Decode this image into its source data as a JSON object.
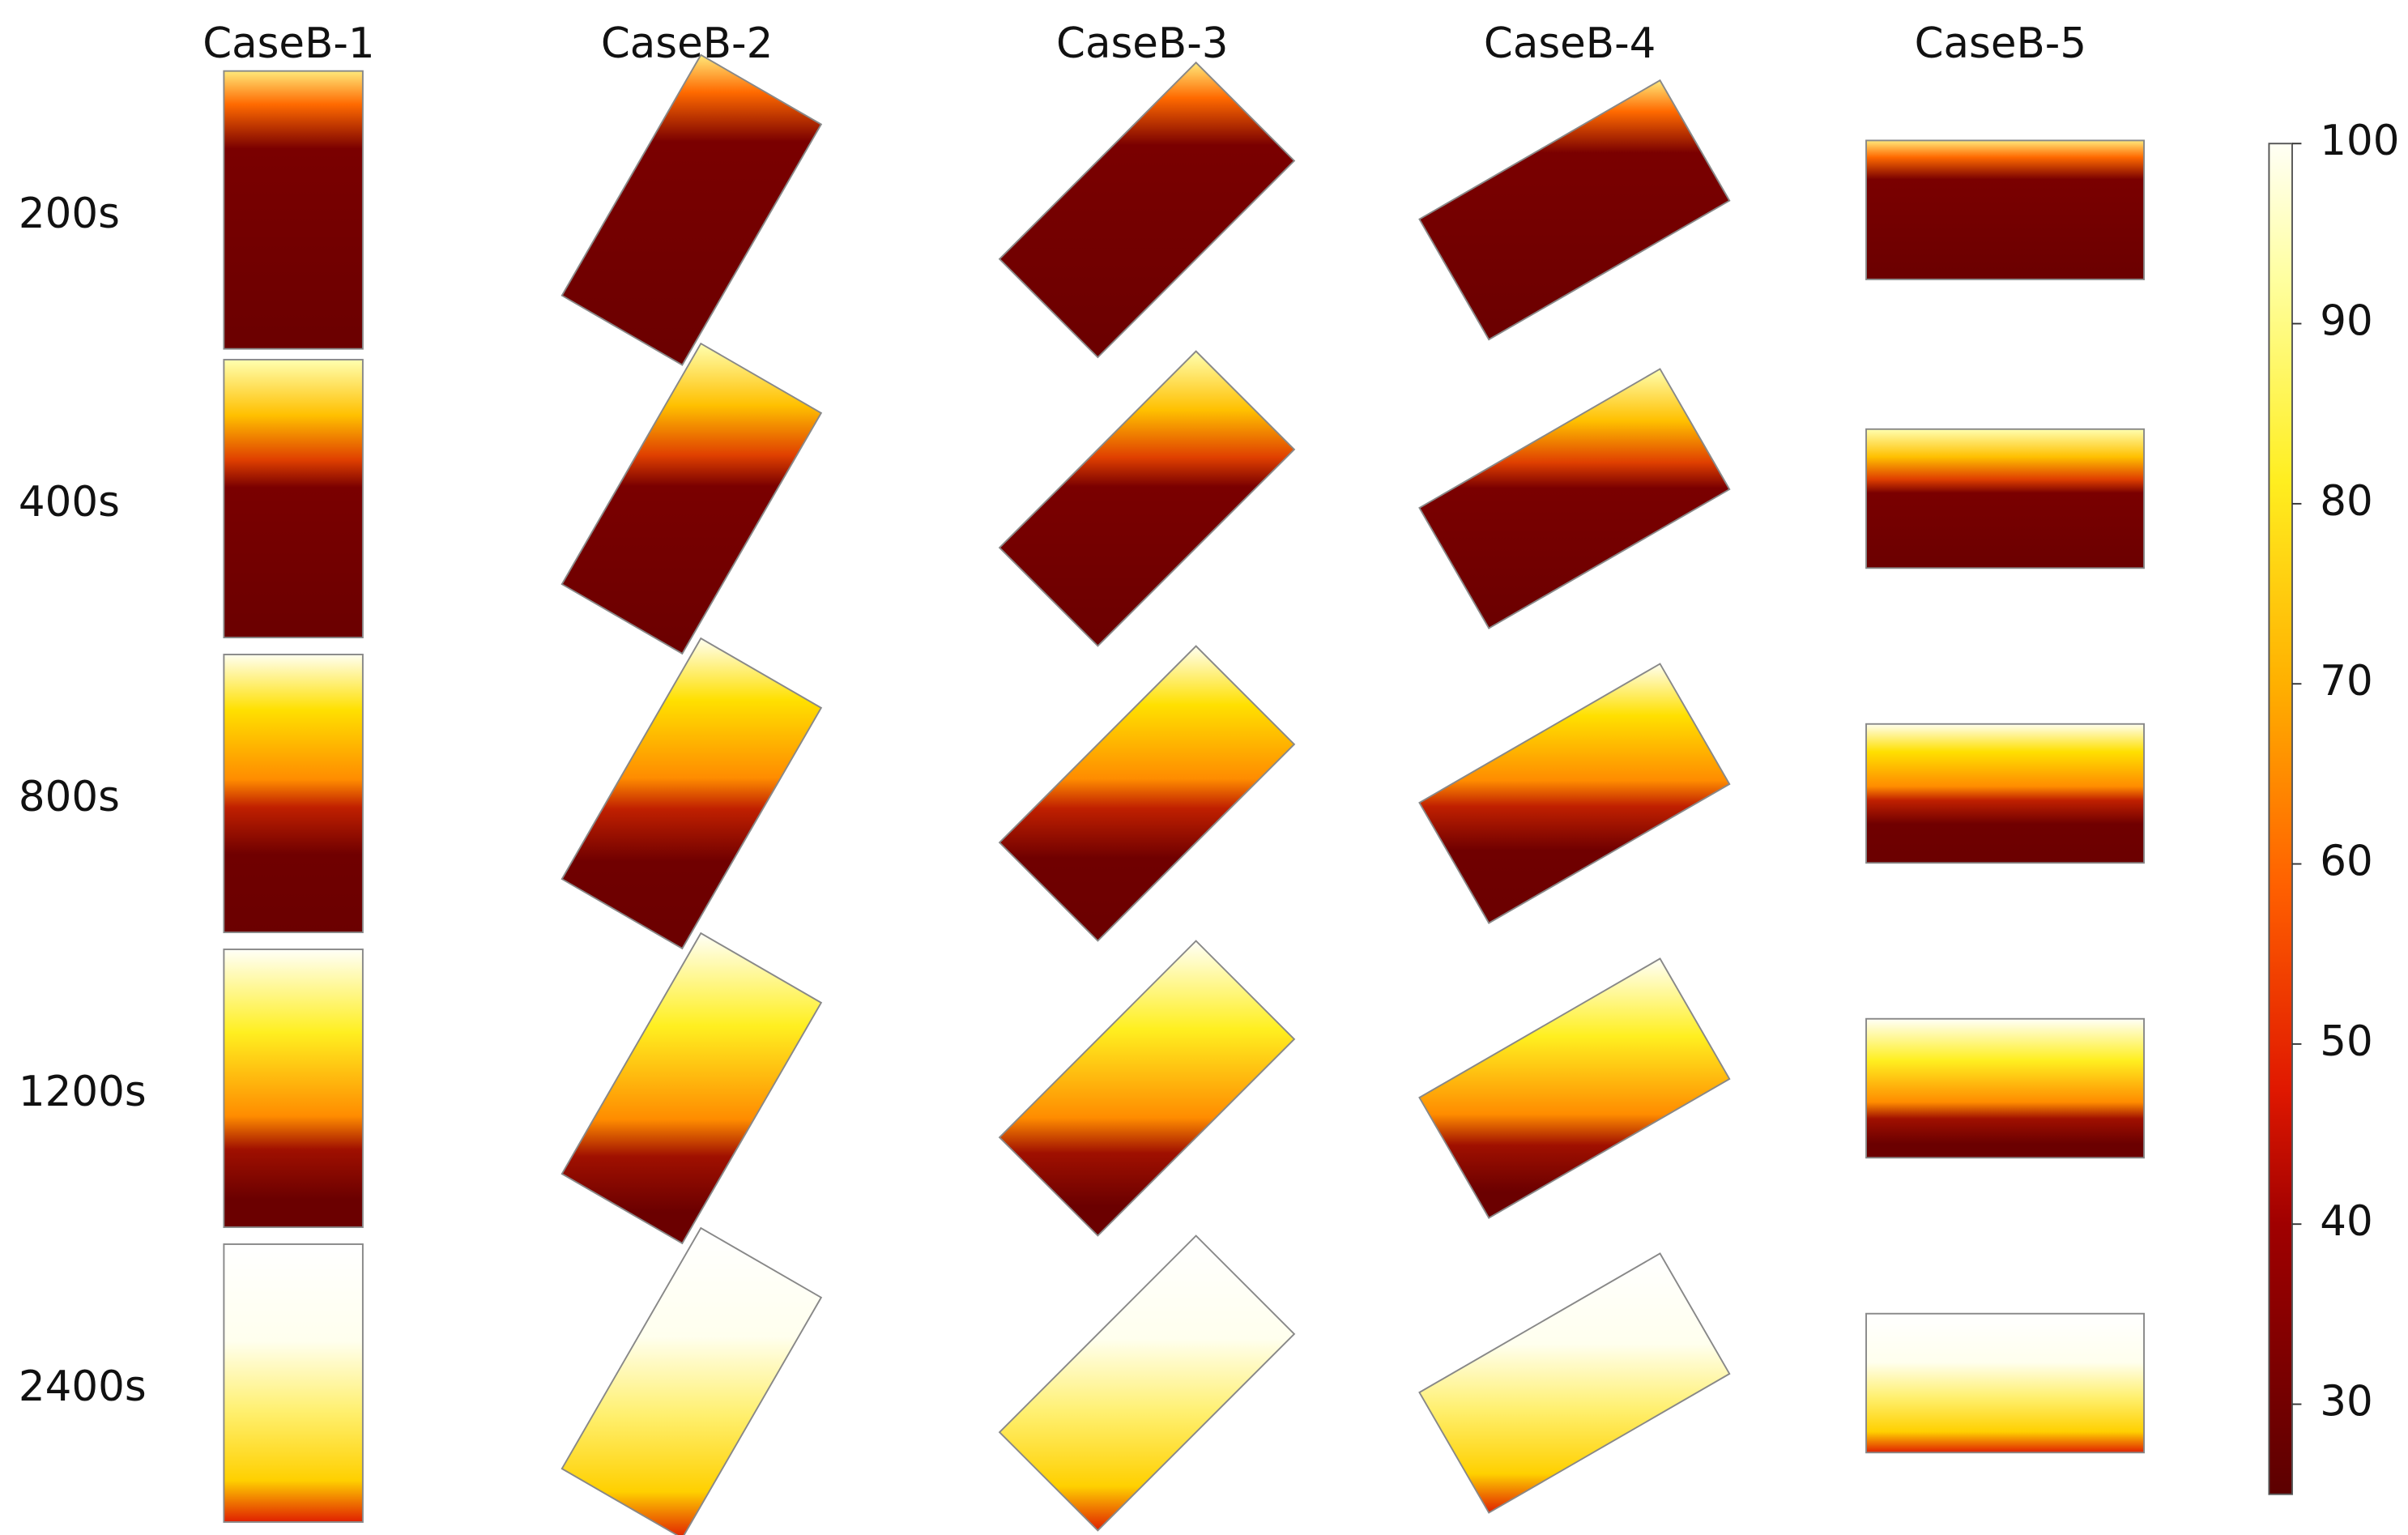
{
  "columns": [
    "CaseB-1",
    "CaseB-2",
    "CaseB-3",
    "CaseB-4",
    "CaseB-5"
  ],
  "rows": [
    "200s",
    "400s",
    "800s",
    "1200s",
    "2400s"
  ],
  "colorbar": {
    "lim": [
      25,
      100
    ],
    "ticks": [
      30,
      40,
      50,
      60,
      70,
      80,
      90,
      100
    ]
  }
}
